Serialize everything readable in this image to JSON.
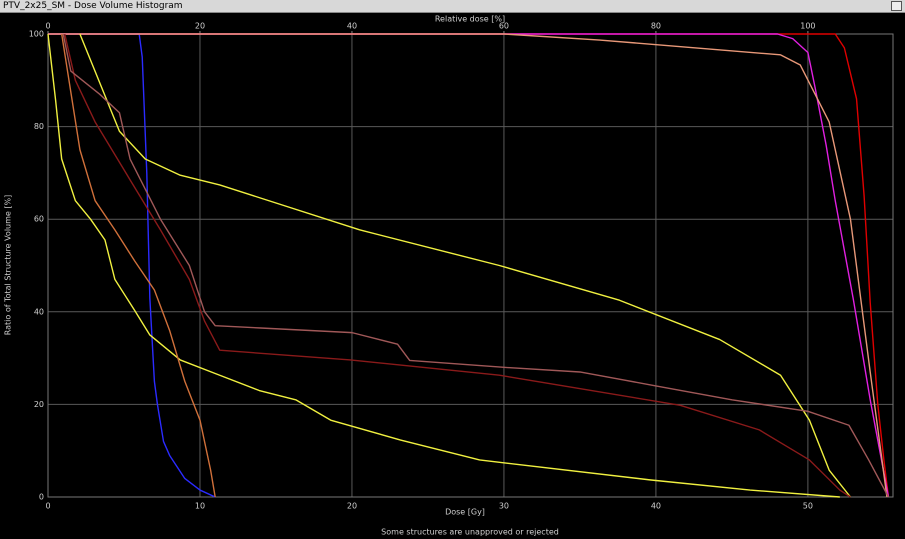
{
  "window_title": "PTV_2x25_SM - Dose Volume Histogram",
  "status_message": "Some structures are unapproved or rejected",
  "chart_data": {
    "type": "line",
    "xlabel": "Dose [Gy]",
    "x2label": "Relative dose [%]",
    "ylabel": "Ratio of Total Structure Volume [%]",
    "xlim": [
      0,
      55.6
    ],
    "xticks": [
      0,
      10,
      20,
      30,
      40,
      50
    ],
    "x2lim": [
      0,
      111.2
    ],
    "x2ticks": [
      0,
      20,
      40,
      60,
      80,
      100
    ],
    "ylim": [
      0,
      100
    ],
    "yticks": [
      0,
      20,
      40,
      60,
      80,
      100
    ],
    "grid": true,
    "series": [
      {
        "color": "#2b2bff",
        "x": [
          0,
          6.0,
          6.2,
          6.5,
          6.7,
          7.0,
          7.2,
          7.6,
          8.0,
          9.0,
          10.0,
          11.0
        ],
        "values": [
          100,
          100,
          95,
          70,
          43,
          25,
          20,
          12,
          9,
          4,
          1.5,
          0
        ]
      },
      {
        "color": "#e00000",
        "x": [
          0,
          51.8,
          52.4,
          53.2,
          53.7,
          54.1,
          54.6,
          55.0,
          55.3
        ],
        "values": [
          100,
          100,
          97,
          86,
          65,
          42,
          20,
          8,
          0
        ]
      },
      {
        "color": "#e020e0",
        "x": [
          0,
          48.0,
          49.0,
          50.0,
          50.5,
          51.2,
          51.8,
          53.0,
          54.1,
          55.3
        ],
        "values": [
          100,
          100,
          99,
          96,
          88,
          76,
          64,
          42.5,
          21,
          0
        ]
      },
      {
        "color": "#e89878",
        "x": [
          0,
          30.0,
          36.3,
          48.2,
          49.5,
          51.4,
          52.8,
          54.1,
          55.2
        ],
        "values": [
          100,
          100,
          98.7,
          95.5,
          93.3,
          81,
          60,
          27,
          0
        ]
      },
      {
        "color": "#f0f040",
        "x": [
          2.1,
          4.7,
          6.4,
          8.7,
          11.3,
          20.5,
          29.7,
          37.6,
          44.2,
          48.2,
          50.1,
          51.4,
          52.8
        ],
        "values": [
          100,
          79,
          73,
          69.5,
          67.4,
          57.7,
          50,
          42.5,
          34,
          26.3,
          16.6,
          5.8,
          0
        ]
      },
      {
        "color": "#f0f040",
        "x": [
          0,
          0.5,
          0.9,
          1.8,
          2.8,
          3.75,
          4.4,
          5.7,
          6.7,
          8.7,
          11.3,
          13.9,
          16.3,
          18.6,
          23.2,
          28.4,
          39.6,
          46.2,
          52.1
        ],
        "values": [
          100,
          85.7,
          73,
          64,
          60,
          55.5,
          47,
          40.3,
          35,
          29.6,
          26.3,
          23,
          21,
          16.6,
          12.3,
          8,
          3.7,
          1.5,
          0
        ]
      },
      {
        "color": "#d0703a",
        "x": [
          0.9,
          2.1,
          3.1,
          4.4,
          5.7,
          7.0,
          8.0,
          9.0,
          10.0,
          10.7,
          11.0
        ],
        "values": [
          100,
          75,
          64,
          57.7,
          51,
          44.7,
          36,
          25,
          16.6,
          5.8,
          0
        ]
      },
      {
        "color": "#8a1a1a",
        "x": [
          1.1,
          1.8,
          3.1,
          5.4,
          7.4,
          9.3,
          10.3,
          11.3,
          19.9,
          29.7,
          41.6,
          46.8,
          50.1,
          52.1,
          52.8
        ],
        "values": [
          100,
          90,
          81,
          68.5,
          57.7,
          47,
          38,
          31.7,
          29.6,
          26.3,
          19.8,
          14.5,
          8,
          1.5,
          0
        ]
      },
      {
        "color": "#a05858",
        "x": [
          1.0,
          1.5,
          3.4,
          4.7,
          5.4,
          7.4,
          9.3,
          10.3,
          11.0,
          14.0,
          20.0,
          23.0,
          23.8,
          30.0,
          35.0,
          40.0,
          45.0,
          50.0,
          52.7,
          54.0,
          55.3
        ],
        "values": [
          100,
          92,
          87,
          83,
          73,
          60,
          50,
          40,
          37,
          36.5,
          35.5,
          33,
          29.5,
          28,
          27,
          24,
          21,
          18.5,
          15.5,
          8,
          0
        ]
      }
    ]
  }
}
